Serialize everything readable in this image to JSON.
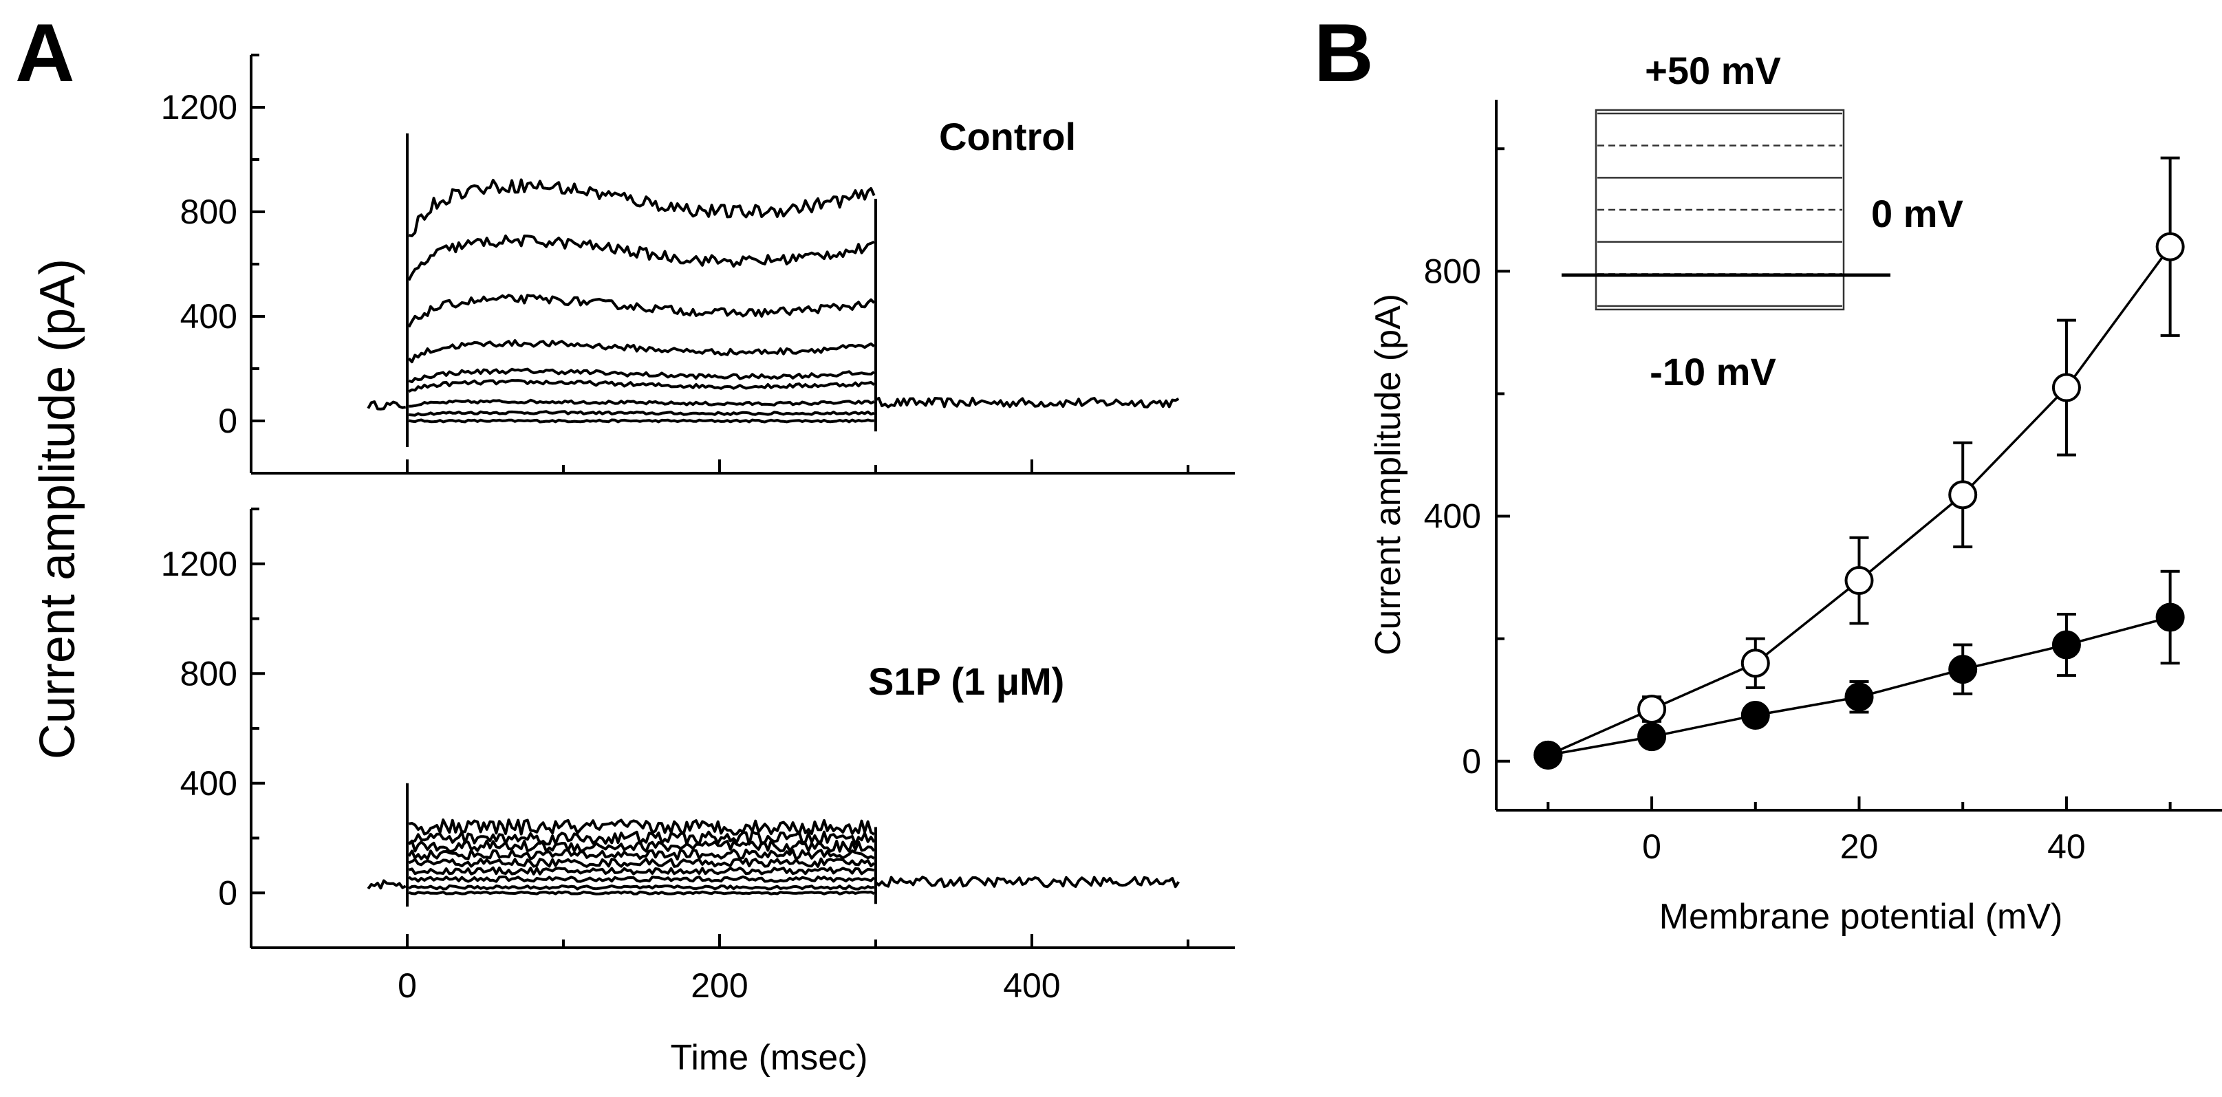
{
  "chart_data": [
    {
      "panel": "A",
      "type": "line",
      "description": "Whole-cell current traces, two stacked sub-panels sharing the time axis",
      "xlabel": "Time (msec)",
      "ylabel": "Current amplitude (pA)",
      "xlim": [
        -100,
        530
      ],
      "x_ticks": [
        0,
        200,
        400
      ],
      "step_window_msec": [
        0,
        300
      ],
      "baseline_window_msec": [
        -25,
        495
      ],
      "subpanels": [
        {
          "name": "Control",
          "ylim": [
            -200,
            1400
          ],
          "y_ticks": [
            0,
            400,
            800,
            1200
          ],
          "spike_range_pA": [
            -100,
            1100
          ],
          "tail_level_pA": 70,
          "step_levels_pA": [
            0,
            30,
            70,
            140,
            180,
            280,
            440,
            650,
            850
          ]
        },
        {
          "name": "S1P (1 μM)",
          "ylim": [
            -200,
            1400
          ],
          "y_ticks": [
            0,
            400,
            800,
            1200
          ],
          "spike_range_pA": [
            -50,
            400
          ],
          "tail_level_pA": 40,
          "step_levels_pA": [
            0,
            20,
            50,
            80,
            110,
            140,
            170,
            200,
            240
          ]
        }
      ]
    },
    {
      "panel": "B",
      "type": "line",
      "description": "Current-voltage relationship (mean ± SEM)",
      "xlabel": "Membrane potential (mV)",
      "ylabel": "Current amplitude (pA)",
      "xlim": [
        -15,
        55
      ],
      "ylim": [
        -80,
        1080
      ],
      "x_ticks": [
        0,
        20,
        40
      ],
      "y_ticks": [
        0,
        400,
        800
      ],
      "x": [
        -10,
        0,
        10,
        20,
        30,
        40,
        50
      ],
      "series": [
        {
          "name": "Control",
          "marker": "open-circle",
          "values": [
            10,
            85,
            160,
            295,
            435,
            610,
            840
          ],
          "errors": [
            5,
            20,
            40,
            70,
            85,
            110,
            145
          ]
        },
        {
          "name": "S1P (1 μM)",
          "marker": "filled-circle",
          "values": [
            10,
            40,
            75,
            105,
            150,
            190,
            235
          ],
          "errors": [
            5,
            10,
            15,
            25,
            40,
            50,
            75
          ]
        }
      ],
      "inset": {
        "type": "voltage-protocol",
        "top_label": "+50 mV",
        "right_label": "0 mV",
        "bottom_label": "-10 mV",
        "steps_mV": [
          -10,
          0,
          10,
          20,
          30,
          40,
          50
        ]
      }
    }
  ]
}
